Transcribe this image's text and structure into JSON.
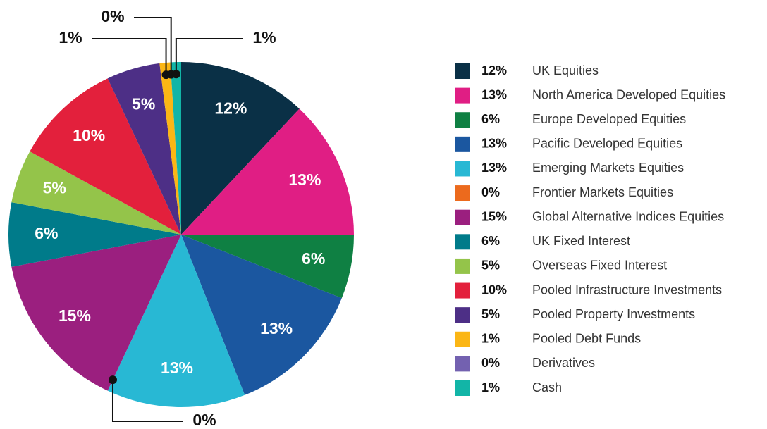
{
  "chart_data": {
    "type": "pie",
    "categories": [
      "UK Equities",
      "North America Developed Equities",
      "Europe Developed Equities",
      "Pacific Developed Equities",
      "Emerging Markets Equities",
      "Frontier Markets Equities",
      "Global Alternative Indices Equities",
      "UK Fixed Interest",
      "Overseas Fixed Interest",
      "Pooled Infrastructure Investments",
      "Pooled Property Investments",
      "Pooled Debt Funds",
      "Derivatives",
      "Cash"
    ],
    "values": [
      12,
      13,
      6,
      13,
      13,
      0,
      15,
      6,
      5,
      10,
      5,
      1,
      0,
      1
    ],
    "value_labels": [
      "12%",
      "13%",
      "6%",
      "13%",
      "13%",
      "0%",
      "15%",
      "6%",
      "5%",
      "10%",
      "5%",
      "1%",
      "0%",
      "1%"
    ],
    "colors": [
      "#0a3046",
      "#e01e84",
      "#0f8043",
      "#1b57a0",
      "#28b8d4",
      "#ec6a1d",
      "#9b1f7f",
      "#007b8a",
      "#94c44a",
      "#e3203c",
      "#4d2f86",
      "#fbb615",
      "#7361b0",
      "#12b5a7"
    ],
    "legend": "right"
  }
}
